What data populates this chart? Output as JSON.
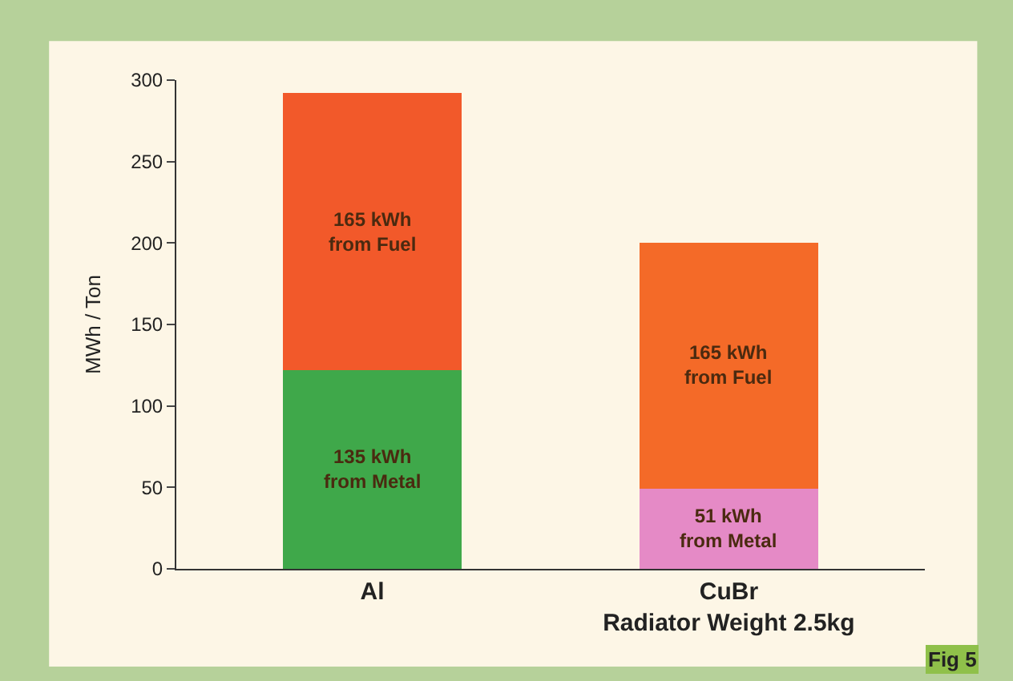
{
  "chart_data": {
    "type": "bar",
    "stacked": true,
    "categories": [
      "Al",
      "CuBr\nRadiator Weight 2.5kg"
    ],
    "ylabel": "MWh / Ton",
    "series": [
      {
        "colors": [
          "#3fa84a",
          "#e58ac6"
        ],
        "values": [
          122,
          49
        ]
      },
      {
        "colors": [
          "#f2592a",
          "#f46a28"
        ],
        "values": [
          170,
          151
        ]
      }
    ],
    "ylim": [
      0,
      300
    ],
    "yticks": [
      0,
      50,
      100,
      150,
      200,
      250,
      300
    ],
    "annotations": [
      "135 kWh\nfrom Metal",
      "51 kWh\nfrom Metal",
      "165 kWh\nfrom Fuel",
      "165 kWh\nfrom Fuel",
      "Fig 5"
    ]
  }
}
